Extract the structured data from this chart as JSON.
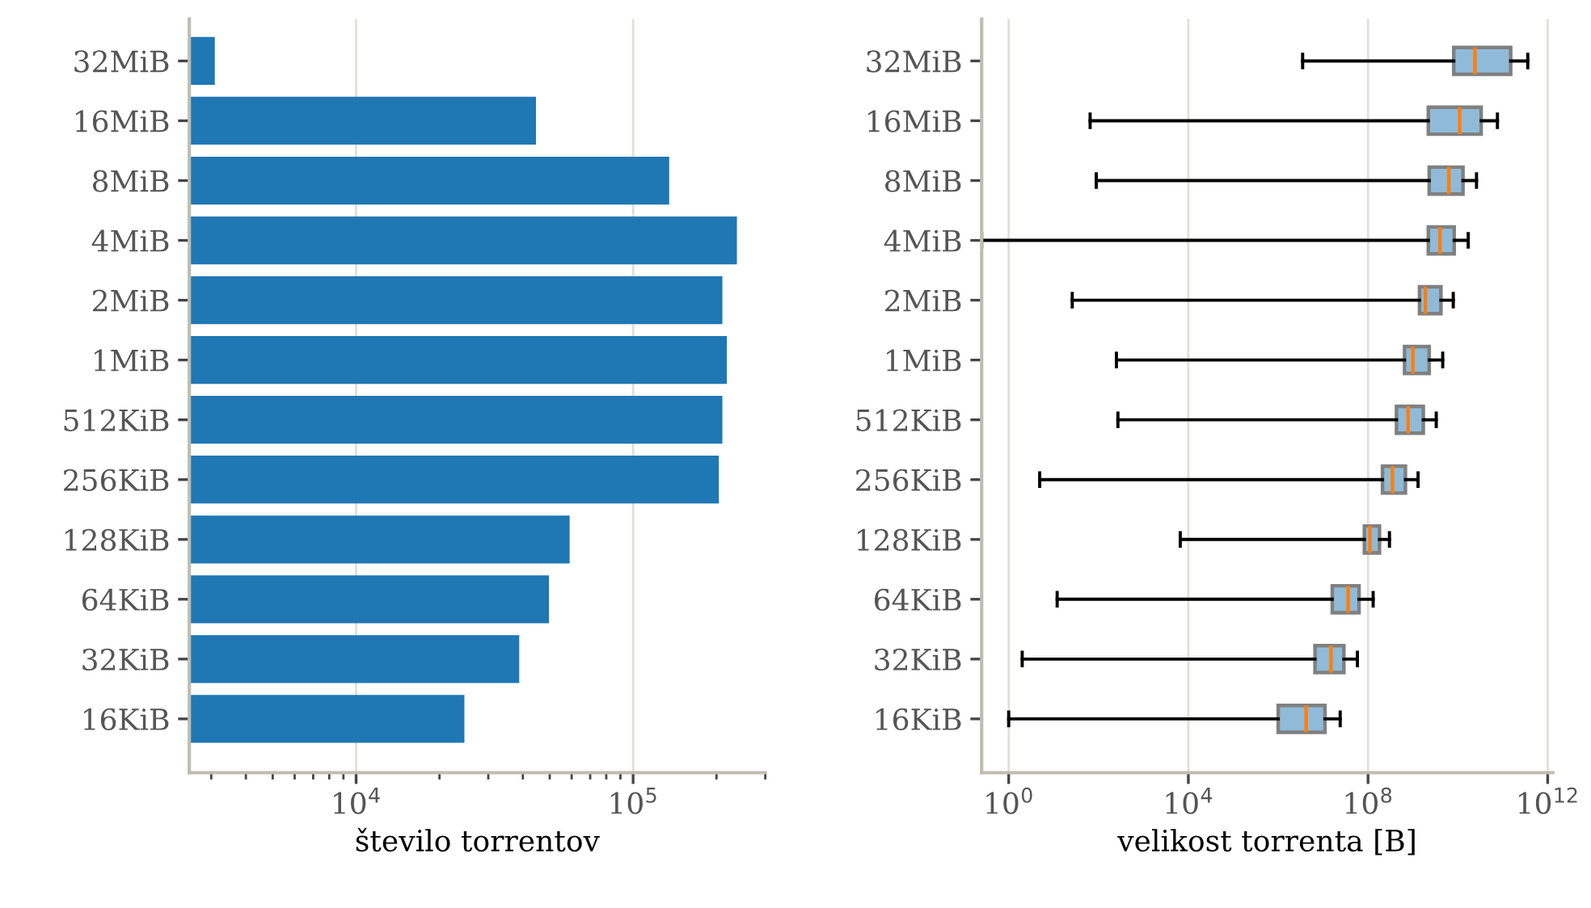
{
  "chart_data": [
    {
      "type": "bar",
      "orientation": "horizontal",
      "log": "x",
      "xlabel": "število torrentov",
      "categories": [
        "32MiB",
        "16MiB",
        "8MiB",
        "4MiB",
        "2MiB",
        "1MiB",
        "512KiB",
        "256KiB",
        "128KiB",
        "64KiB",
        "32KiB",
        "16KiB"
      ],
      "values": [
        3090,
        44600,
        135000,
        237000,
        210000,
        218000,
        210000,
        204000,
        59000,
        49700,
        38800,
        24600
      ],
      "color": "#1f77b4",
      "xlim": [
        2500,
        300000
      ],
      "xticks": [
        {
          "value": 10000,
          "label": "10$^{4}$"
        },
        {
          "value": 100000,
          "label": "10$^{5}$"
        }
      ],
      "grid": "x",
      "legend": false
    },
    {
      "type": "box",
      "orientation": "horizontal",
      "log": "x",
      "xlabel": "velikost torrenta [B]",
      "categories": [
        "32MiB",
        "16MiB",
        "8MiB",
        "4MiB",
        "2MiB",
        "1MiB",
        "512KiB",
        "256KiB",
        "128KiB",
        "64KiB",
        "32KiB",
        "16KiB"
      ],
      "color": "#8fbbd9",
      "xlim": [
        0.25,
        1300000000000.0
      ],
      "xticks": [
        {
          "value": 1,
          "label": "10$^{0}$"
        },
        {
          "value": 10000,
          "label": "10$^{4}$"
        },
        {
          "value": 100000000,
          "label": "10$^{8}$"
        },
        {
          "value": 1000000000000.0,
          "label": "10$^{12}$"
        }
      ],
      "grid": "x",
      "legend": false,
      "boxes": [
        {
          "low": 3500000.0,
          "q1": 8100000000.0,
          "median": 24000000000.0,
          "q3": 150000000000.0,
          "high": 360000000000.0
        },
        {
          "low": 65,
          "q1": 2200000000.0,
          "median": 11000000000.0,
          "q3": 33000000000.0,
          "high": 76000000000.0
        },
        {
          "low": 89,
          "q1": 2300000000.0,
          "median": 6300000000.0,
          "q3": 13000000000.0,
          "high": 26000000000.0
        },
        {
          "low": 0.25,
          "q1": 2200000000.0,
          "median": 4000000000.0,
          "q3": 8300000000.0,
          "high": 17000000000.0
        },
        {
          "low": 26,
          "q1": 1400000000.0,
          "median": 1900000000.0,
          "q3": 4200000000.0,
          "high": 7900000000.0
        },
        {
          "low": 250,
          "q1": 650000000.0,
          "median": 1000000000.0,
          "q3": 2300000000.0,
          "high": 4600000000.0
        },
        {
          "low": 270,
          "q1": 430000000.0,
          "median": 780000000.0,
          "q3": 1700000000.0,
          "high": 3300000000.0
        },
        {
          "low": 4.9,
          "q1": 210000000.0,
          "median": 350000000.0,
          "q3": 680000000.0,
          "high": 1300000000.0
        },
        {
          "low": 6600,
          "q1": 83000000.0,
          "median": 110000000.0,
          "q3": 180000000.0,
          "high": 300000000.0
        },
        {
          "low": 12,
          "q1": 16000000.0,
          "median": 36000000.0,
          "q3": 63000000.0,
          "high": 130000000.0
        },
        {
          "low": 2.0,
          "q1": 6600000.0,
          "median": 15000000.0,
          "q3": 29000000.0,
          "high": 58000000.0
        },
        {
          "low": 1,
          "q1": 1000000.0,
          "median": 4200000.0,
          "q3": 11000000.0,
          "high": 24000000.0
        }
      ]
    }
  ]
}
